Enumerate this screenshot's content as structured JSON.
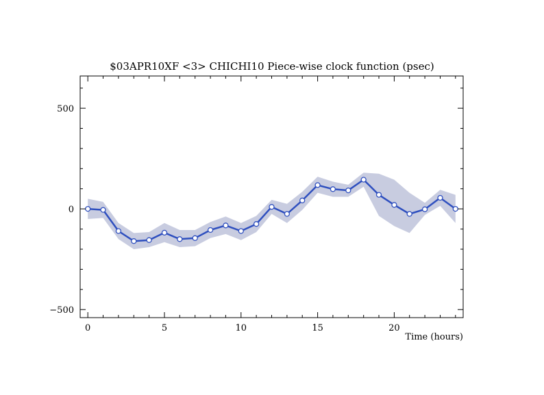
{
  "chart_data": {
    "type": "line",
    "title": "$03APR10XF <3>  CHICHI10  Piece-wise clock function (psec)",
    "xlabel": "Time (hours)",
    "ylabel": "",
    "xlim": [
      -0.5,
      24.5
    ],
    "ylim": [
      -540,
      660
    ],
    "xticks": [
      0,
      5,
      10,
      15,
      20
    ],
    "yticks": [
      -500,
      0,
      500
    ],
    "xtick_labels": [
      "0",
      "5",
      "10",
      "15",
      "20"
    ],
    "ytick_labels": [
      "−500",
      "0",
      "500"
    ],
    "grid": false,
    "legend": "none",
    "colors": {
      "line": "#2e4fbf",
      "band": "#c8cce0",
      "marker_fill": "#ffffff",
      "axis": "#000000"
    },
    "series": [
      {
        "x": [
          0,
          1,
          2,
          3,
          4,
          5,
          6,
          7,
          8,
          9,
          10,
          11,
          12,
          13,
          14,
          15,
          16,
          17,
          18,
          19,
          20,
          21,
          22,
          23,
          24
        ],
        "values": [
          0,
          -5,
          -110,
          -160,
          -155,
          -118,
          -150,
          -145,
          -105,
          -82,
          -110,
          -75,
          10,
          -25,
          42,
          118,
          98,
          92,
          145,
          70,
          20,
          -25,
          -2,
          55,
          0
        ]
      }
    ],
    "band": {
      "x": [
        0,
        1,
        2,
        3,
        4,
        5,
        6,
        7,
        8,
        9,
        10,
        11,
        12,
        13,
        14,
        15,
        16,
        17,
        18,
        19,
        20,
        21,
        22,
        23,
        24
      ],
      "upper": [
        50,
        35,
        -70,
        -120,
        -115,
        -70,
        -105,
        -105,
        -65,
        -38,
        -70,
        -35,
        45,
        25,
        85,
        160,
        135,
        120,
        180,
        175,
        145,
        80,
        30,
        95,
        70
      ],
      "lower": [
        -50,
        -45,
        -150,
        -200,
        -190,
        -165,
        -190,
        -185,
        -145,
        -125,
        -155,
        -115,
        -25,
        -70,
        -5,
        80,
        60,
        60,
        110,
        -35,
        -85,
        -120,
        -30,
        15,
        -70
      ]
    }
  }
}
